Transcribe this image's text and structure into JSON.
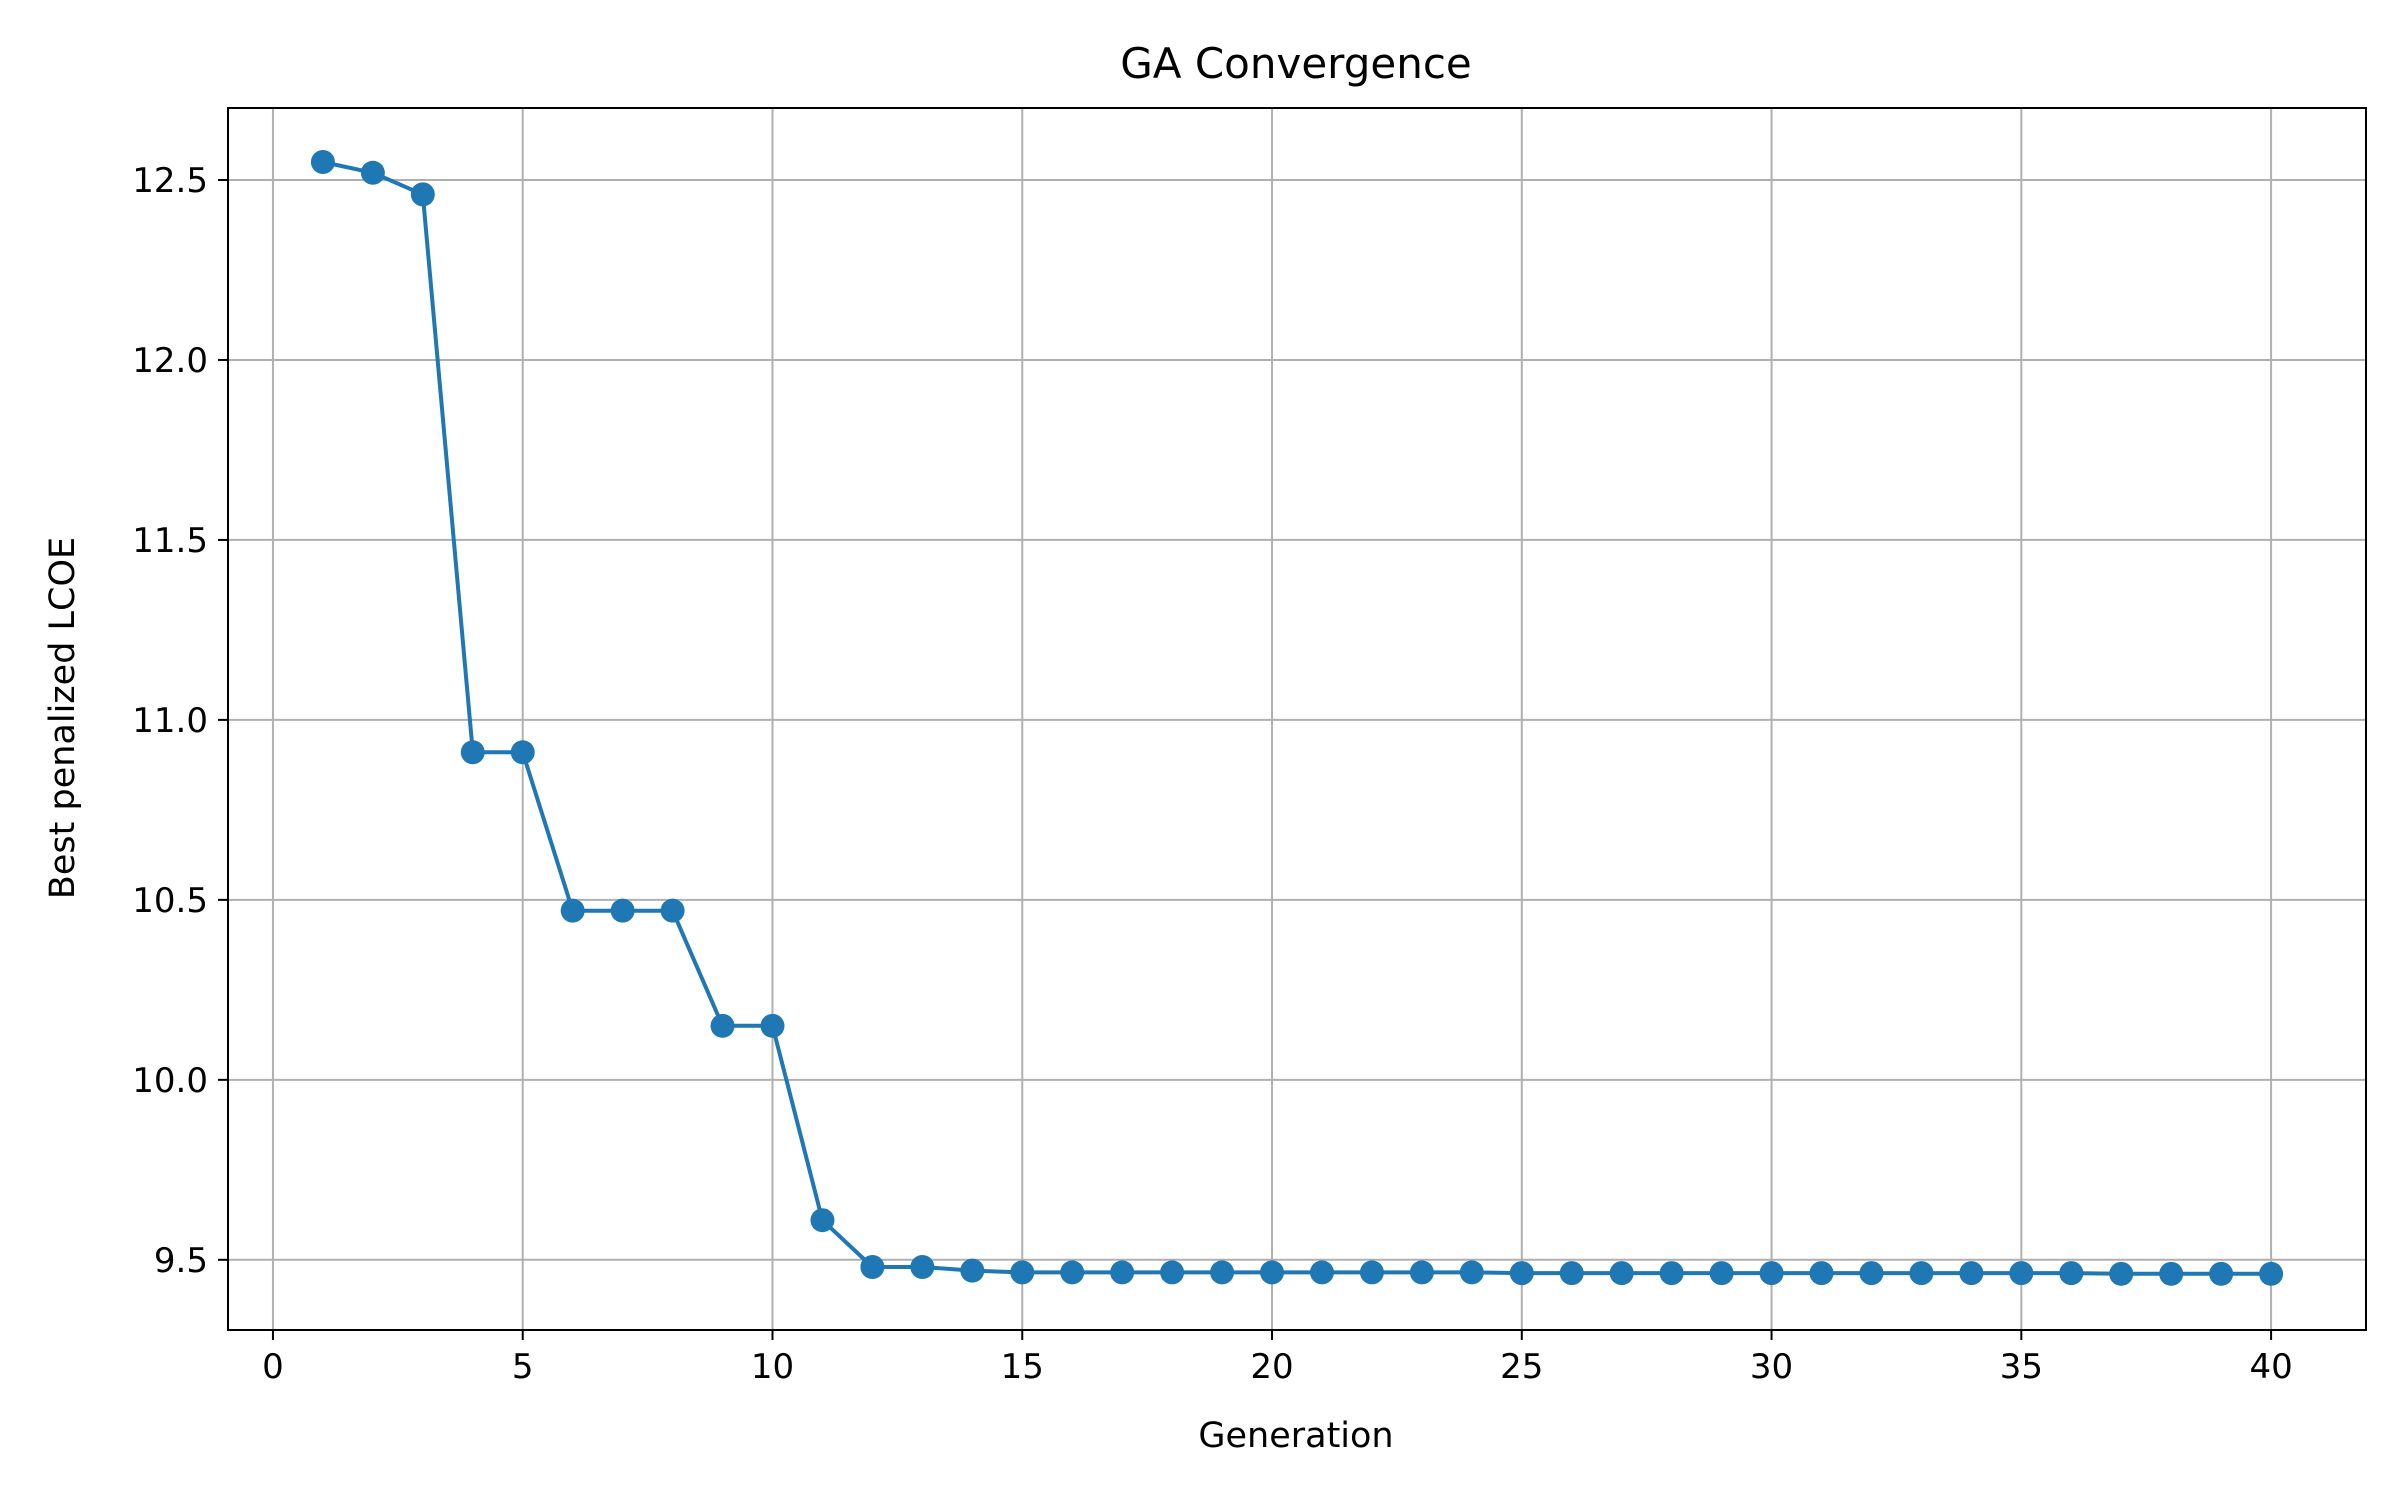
{
  "chart_data": {
    "type": "line",
    "title": "GA Convergence",
    "xlabel": "Generation",
    "ylabel": "Best penalized LCOE",
    "xlim": [
      -0.9,
      41.9
    ],
    "ylim": [
      9.305,
      12.7
    ],
    "xticks": [
      0,
      5,
      10,
      15,
      20,
      25,
      30,
      35,
      40
    ],
    "yticks": [
      9.5,
      10.0,
      10.5,
      11.0,
      11.5,
      12.0,
      12.5
    ],
    "ytick_labels": [
      "9.5",
      "10.0",
      "10.5",
      "11.0",
      "11.5",
      "12.0",
      "12.5"
    ],
    "grid": true,
    "marker": "circle",
    "colors": {
      "series": "#1f77b4",
      "grid": "#b0b0b0",
      "axes": "#000000"
    },
    "series": [
      {
        "x": [
          1,
          2,
          3,
          4,
          5,
          6,
          7,
          8,
          9,
          10,
          11,
          12,
          13,
          14,
          15,
          16,
          17,
          18,
          19,
          20,
          21,
          22,
          23,
          24,
          25,
          26,
          27,
          28,
          29,
          30,
          31,
          32,
          33,
          34,
          35,
          36,
          37,
          38,
          39,
          40
        ],
        "values": [
          12.55,
          12.52,
          12.46,
          10.91,
          10.91,
          10.47,
          10.47,
          10.47,
          10.15,
          10.15,
          9.61,
          9.48,
          9.48,
          9.47,
          9.465,
          9.465,
          9.465,
          9.465,
          9.465,
          9.465,
          9.465,
          9.465,
          9.465,
          9.465,
          9.463,
          9.463,
          9.463,
          9.463,
          9.463,
          9.463,
          9.463,
          9.463,
          9.463,
          9.463,
          9.463,
          9.463,
          9.461,
          9.461,
          9.461,
          9.461
        ]
      }
    ]
  }
}
